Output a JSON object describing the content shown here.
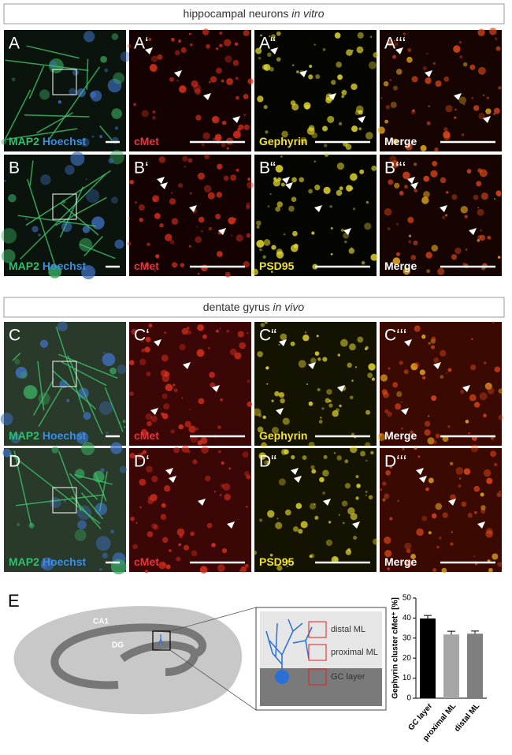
{
  "sections": [
    {
      "title": "hippocampal neurons ",
      "title_italic": "in vitro",
      "rows": [
        {
          "panels": [
            {
              "label": "A",
              "channels": [
                {
                  "text": "MAP2",
                  "color": "#2fbf71"
                },
                {
                  "text": "Hoechst",
                  "color": "#3a8ee6"
                }
              ]
            },
            {
              "label": "A‘",
              "channels": [
                {
                  "text": "cMet",
                  "color": "#e8323c"
                }
              ]
            },
            {
              "label": "A“",
              "channels": [
                {
                  "text": "Gephyrin",
                  "color": "#f2e22c"
                }
              ]
            },
            {
              "label": "A‘‘‘",
              "channels": [
                {
                  "text": "Merge",
                  "color": "#ffffff"
                }
              ]
            }
          ]
        },
        {
          "panels": [
            {
              "label": "B",
              "channels": [
                {
                  "text": "MAP2",
                  "color": "#2fbf71"
                },
                {
                  "text": "Hoechst",
                  "color": "#3a8ee6"
                }
              ]
            },
            {
              "label": "B‘",
              "channels": [
                {
                  "text": "cMet",
                  "color": "#e8323c"
                }
              ]
            },
            {
              "label": "B“",
              "channels": [
                {
                  "text": "PSD95",
                  "color": "#f2e22c"
                }
              ]
            },
            {
              "label": "B‘‘‘",
              "channels": [
                {
                  "text": "Merge",
                  "color": "#ffffff"
                }
              ]
            }
          ]
        }
      ]
    },
    {
      "title": "dentate gyrus ",
      "title_italic": "in vivo",
      "rows": [
        {
          "panels": [
            {
              "label": "C",
              "channels": [
                {
                  "text": "MAP2",
                  "color": "#2fbf71"
                },
                {
                  "text": "Hoechst",
                  "color": "#3a8ee6"
                }
              ]
            },
            {
              "label": "C‘",
              "channels": [
                {
                  "text": "cMet",
                  "color": "#e8323c"
                }
              ]
            },
            {
              "label": "C“",
              "channels": [
                {
                  "text": "Gephyrin",
                  "color": "#f2e22c"
                }
              ]
            },
            {
              "label": "C‘‘‘",
              "channels": [
                {
                  "text": "Merge",
                  "color": "#ffffff"
                }
              ]
            }
          ]
        },
        {
          "panels": [
            {
              "label": "D",
              "channels": [
                {
                  "text": "MAP2",
                  "color": "#2fbf71"
                },
                {
                  "text": "Hoechst",
                  "color": "#3a8ee6"
                }
              ]
            },
            {
              "label": "D‘",
              "channels": [
                {
                  "text": "cMet",
                  "color": "#e8323c"
                }
              ]
            },
            {
              "label": "D“",
              "channels": [
                {
                  "text": "PSD95",
                  "color": "#f2e22c"
                }
              ]
            },
            {
              "label": "D‘‘‘",
              "channels": [
                {
                  "text": "Merge",
                  "color": "#ffffff"
                }
              ]
            }
          ]
        }
      ]
    }
  ],
  "panel_e": {
    "label": "E",
    "schematic": {
      "ca1": "CA1",
      "dg": "DG",
      "layers": [
        "distal ML",
        "proximal ML",
        "GC layer"
      ]
    }
  },
  "chart_data": {
    "type": "bar",
    "ylabel": "Gephyrin cluster cMet⁺ [%]",
    "categories": [
      "GC layer",
      "proximal ML",
      "distal ML"
    ],
    "values": [
      39.8,
      31.8,
      32.2
    ],
    "errors": [
      1.5,
      1.6,
      1.3
    ],
    "colors": [
      "#000000",
      "#a6a6a6",
      "#7f7f7f"
    ],
    "ylim": [
      0,
      50
    ],
    "yticks": [
      0,
      10,
      20,
      30,
      40,
      50
    ]
  }
}
